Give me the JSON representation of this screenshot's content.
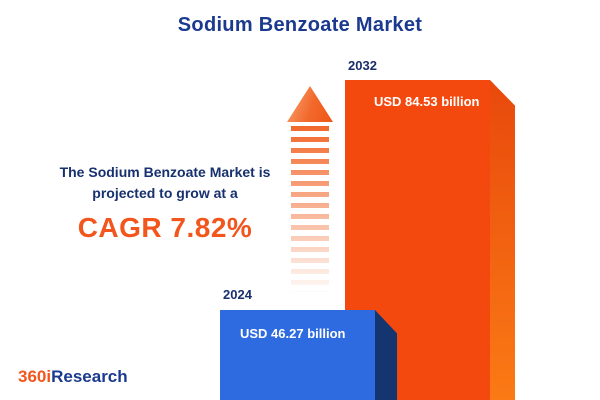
{
  "title": "Sodium Benzoate Market",
  "description": {
    "line1": "The Sodium Benzoate Market is",
    "line2": "projected to grow at a",
    "cagr": "CAGR 7.82%"
  },
  "logo": {
    "prefix": "360i",
    "suffix": "Research"
  },
  "colors": {
    "navy": "#1b3a8f",
    "orange_accent": "#f2561d",
    "bar_blue": "#2e6be1",
    "bar_blue_side": "#14356f",
    "bar_orange": "#f4490e",
    "bar_orange_side": "#fb7a15"
  },
  "chart_data": {
    "type": "bar",
    "title": "Sodium Benzoate Market",
    "categories": [
      "2024",
      "2032"
    ],
    "values": [
      46.27,
      84.53
    ],
    "value_labels": [
      "USD 46.27 billion",
      "USD 84.53 billion"
    ],
    "unit": "USD billion",
    "annotation": "CAGR 7.82%",
    "cagr_percent": 7.82,
    "legend": "none",
    "grid": false
  }
}
